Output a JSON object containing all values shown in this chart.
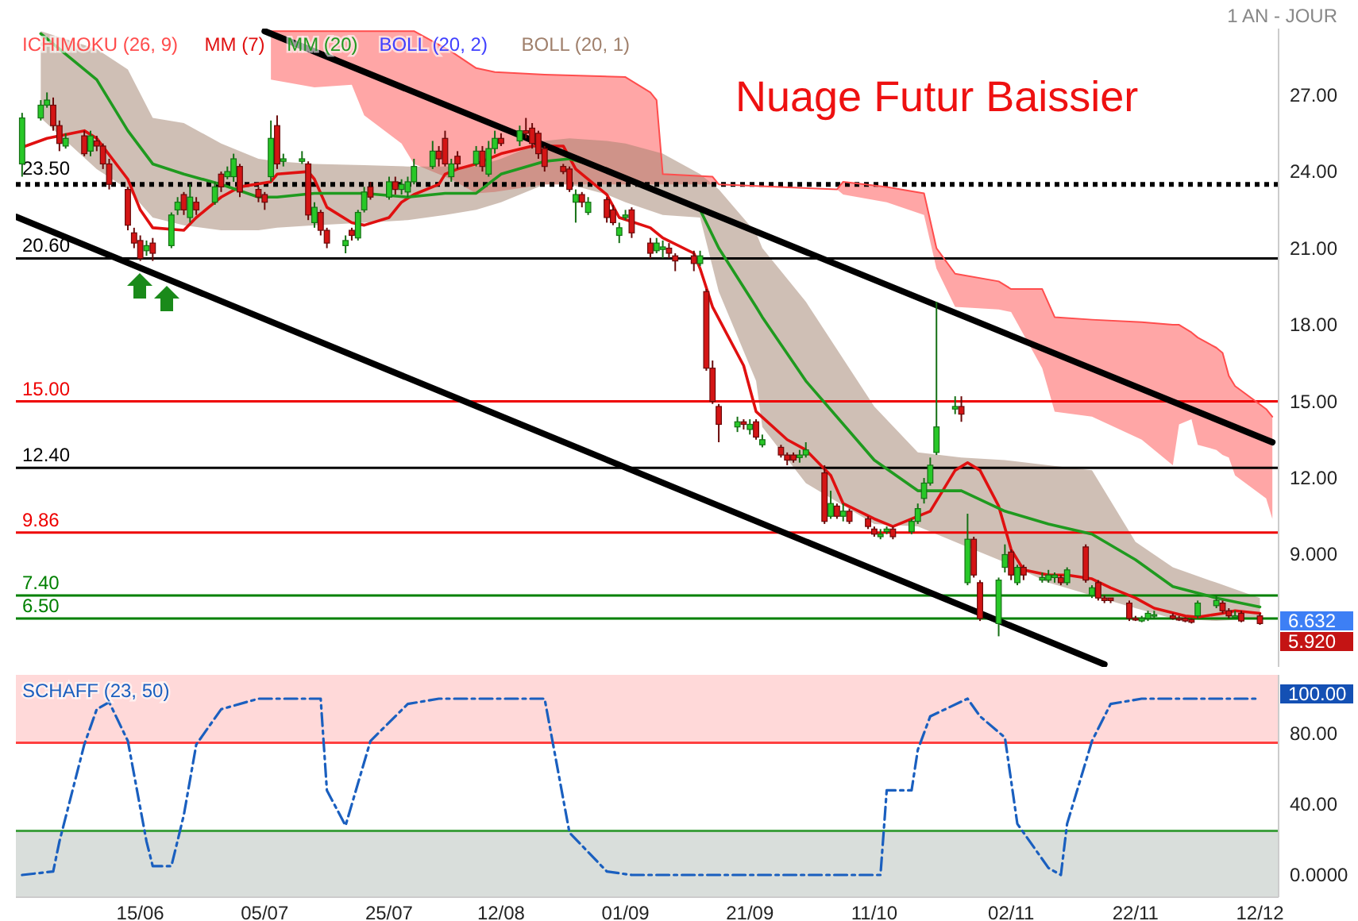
{
  "chart_data": [
    {
      "type": "candlestick",
      "legend": "top left",
      "tick_labels": "y",
      "xlim": [
        "--05-26",
        "--12-15"
      ],
      "ylim": [
        4.6,
        29.6
      ],
      "yticks": [
        {
          "value": 27,
          "label": "27.00"
        },
        {
          "value": 24,
          "label": "24.00"
        },
        {
          "value": 21,
          "label": "21.00"
        },
        {
          "value": 18,
          "label": "18.00"
        },
        {
          "value": 15,
          "label": "15.00"
        },
        {
          "value": 12,
          "label": "12.00"
        },
        {
          "value": 9,
          "label": "9.000"
        }
      ],
      "x": [
        "--05-27",
        "--05-30",
        "--05-31",
        "--06-01",
        "--06-02",
        "--06-03",
        "--06-06",
        "--06-07",
        "--06-08",
        "--06-09",
        "--06-10",
        "--06-13",
        "--06-14",
        "--06-15",
        "--06-16",
        "--06-17",
        "--06-20",
        "--06-21",
        "--06-22",
        "--06-23",
        "--06-24",
        "--06-27",
        "--06-28",
        "--06-29",
        "--06-30",
        "--07-01",
        "--07-04",
        "--07-05",
        "--07-06",
        "--07-07",
        "--07-08",
        "--07-11",
        "--07-12",
        "--07-13",
        "--07-14",
        "--07-15",
        "--07-18",
        "--07-19",
        "--07-20",
        "--07-21",
        "--07-22",
        "--07-25",
        "--07-26",
        "--07-27",
        "--07-28",
        "--07-29",
        "--08-01",
        "--08-02",
        "--08-03",
        "--08-04",
        "--08-05",
        "--08-08",
        "--08-09",
        "--08-10",
        "--08-11",
        "--08-12",
        "--08-15",
        "--08-16",
        "--08-17",
        "--08-18",
        "--08-19",
        "--08-22",
        "--08-23",
        "--08-24",
        "--08-25",
        "--08-26",
        "--08-29",
        "--08-30",
        "--08-31",
        "--09-01",
        "--09-02",
        "--09-05",
        "--09-06",
        "--09-07",
        "--09-08",
        "--09-09",
        "--09-12",
        "--09-13",
        "--09-14",
        "--09-15",
        "--09-16",
        "--09-19",
        "--09-20",
        "--09-21",
        "--09-22",
        "--09-23",
        "--09-26",
        "--09-27",
        "--09-28",
        "--09-29",
        "--09-30",
        "--10-03",
        "--10-04",
        "--10-05",
        "--10-06",
        "--10-07",
        "--10-10",
        "--10-11",
        "--10-12",
        "--10-13",
        "--10-14",
        "--10-17",
        "--10-18",
        "--10-19",
        "--10-20",
        "--10-21",
        "--10-24",
        "--10-25",
        "--10-26",
        "--10-27",
        "--10-28",
        "--10-31",
        "--11-01",
        "--11-02",
        "--11-03",
        "--11-04",
        "--11-07",
        "--11-08",
        "--11-09",
        "--11-10",
        "--11-11",
        "--11-14",
        "--11-15",
        "--11-16",
        "--11-17",
        "--11-18",
        "--11-21",
        "--11-22",
        "--11-23",
        "--11-24",
        "--11-25",
        "--11-28",
        "--11-29",
        "--11-30",
        "--12-01",
        "--12-02",
        "--12-05",
        "--12-06",
        "--12-07",
        "--12-08",
        "--12-09",
        "--12-12"
      ],
      "ohlc": [
        [
          24.3,
          26.3,
          23.8,
          26.1
        ],
        [
          26.1,
          26.8,
          26.0,
          26.6
        ],
        [
          26.6,
          27.1,
          26.5,
          26.8
        ],
        [
          26.6,
          26.9,
          25.6,
          25.8
        ],
        [
          25.8,
          26.0,
          24.8,
          25.1
        ],
        [
          25.0,
          25.5,
          24.9,
          25.3
        ],
        [
          25.4,
          25.6,
          24.6,
          24.7
        ],
        [
          24.8,
          25.6,
          24.6,
          25.4
        ],
        [
          25.2,
          25.4,
          24.8,
          25.0
        ],
        [
          25.0,
          25.1,
          24.1,
          24.3
        ],
        [
          24.3,
          24.5,
          23.3,
          23.5
        ],
        [
          23.3,
          23.4,
          21.7,
          21.9
        ],
        [
          21.6,
          21.8,
          21.0,
          21.2
        ],
        [
          21.3,
          21.5,
          20.5,
          20.6
        ],
        [
          20.9,
          21.3,
          20.7,
          21.1
        ],
        [
          21.2,
          21.4,
          20.5,
          20.8
        ],
        [
          21.1,
          22.4,
          21.0,
          22.3
        ],
        [
          22.5,
          23.0,
          22.3,
          22.8
        ],
        [
          23.1,
          23.2,
          22.3,
          22.5
        ],
        [
          22.2,
          23.5,
          22.0,
          23.0
        ],
        [
          22.8,
          23.0,
          22.3,
          22.5
        ],
        [
          22.8,
          23.6,
          22.7,
          23.4
        ],
        [
          23.9,
          24.0,
          23.2,
          23.4
        ],
        [
          23.8,
          24.2,
          23.7,
          24.0
        ],
        [
          23.8,
          24.7,
          23.6,
          24.5
        ],
        [
          24.2,
          24.3,
          23.0,
          23.2
        ],
        [
          23.3,
          23.4,
          22.8,
          23.0
        ],
        [
          23.1,
          23.2,
          22.5,
          22.8
        ],
        [
          23.8,
          26.0,
          23.6,
          25.3
        ],
        [
          25.8,
          26.2,
          24.1,
          24.3
        ],
        [
          24.4,
          24.7,
          24.2,
          24.5
        ],
        [
          24.4,
          24.8,
          24.3,
          24.5
        ],
        [
          24.3,
          24.4,
          22.1,
          22.3
        ],
        [
          22.0,
          22.8,
          21.8,
          22.6
        ],
        [
          22.4,
          22.5,
          21.5,
          21.7
        ],
        [
          21.7,
          21.8,
          21.0,
          21.2
        ],
        [
          21.1,
          21.5,
          20.8,
          21.3
        ],
        [
          21.7,
          21.8,
          21.3,
          21.5
        ],
        [
          21.4,
          22.5,
          21.3,
          22.4
        ],
        [
          22.5,
          23.4,
          22.4,
          23.2
        ],
        [
          23.4,
          23.6,
          22.9,
          23.0
        ],
        [
          23.0,
          23.8,
          22.9,
          23.6
        ],
        [
          23.6,
          23.8,
          23.1,
          23.3
        ],
        [
          23.3,
          23.7,
          23.1,
          23.5
        ],
        [
          23.2,
          23.8,
          23.0,
          23.6
        ],
        [
          23.6,
          24.5,
          23.5,
          24.2
        ],
        [
          24.2,
          25.2,
          24.1,
          24.8
        ],
        [
          24.8,
          25.0,
          24.2,
          24.5
        ],
        [
          25.3,
          25.6,
          24.2,
          24.3
        ],
        [
          23.8,
          24.5,
          23.6,
          24.3
        ],
        [
          24.6,
          24.8,
          24.1,
          24.3
        ],
        [
          24.3,
          25.0,
          24.2,
          24.8
        ],
        [
          24.8,
          25.0,
          24.0,
          24.2
        ],
        [
          23.9,
          25.2,
          23.8,
          24.9
        ],
        [
          24.9,
          25.6,
          24.7,
          25.3
        ],
        [
          25.3,
          25.5,
          25.0,
          25.1
        ],
        [
          25.2,
          25.8,
          25.0,
          25.6
        ],
        [
          25.6,
          26.1,
          25.3,
          25.5
        ],
        [
          25.7,
          25.9,
          24.9,
          25.1
        ],
        [
          25.5,
          25.6,
          24.5,
          24.7
        ],
        [
          24.9,
          25.0,
          24.0,
          24.2
        ],
        [
          24.2,
          24.3,
          23.9,
          24.0
        ],
        [
          24.1,
          24.2,
          23.2,
          23.3
        ],
        [
          22.8,
          23.3,
          22.0,
          23.1
        ],
        [
          23.1,
          23.2,
          22.6,
          22.8
        ],
        [
          22.4,
          23.0,
          22.3,
          22.8
        ],
        [
          22.9,
          23.0,
          22.0,
          22.2
        ],
        [
          22.5,
          22.7,
          21.9,
          22.0
        ],
        [
          21.5,
          22.0,
          21.2,
          21.8
        ],
        [
          22.2,
          22.5,
          22.1,
          22.3
        ],
        [
          22.5,
          22.6,
          21.4,
          21.6
        ],
        [
          21.2,
          21.4,
          20.6,
          20.8
        ],
        [
          20.9,
          21.4,
          20.8,
          21.2
        ],
        [
          20.95,
          21.3,
          20.6,
          21.05
        ],
        [
          21.0,
          21.2,
          20.6,
          20.8
        ],
        [
          20.7,
          20.8,
          20.1,
          20.5
        ],
        [
          20.7,
          20.9,
          20.1,
          20.4
        ],
        [
          20.4,
          20.9,
          20.3,
          20.7
        ],
        [
          19.3,
          19.4,
          16.2,
          16.3
        ],
        [
          16.3,
          16.6,
          14.9,
          15.0
        ],
        [
          14.8,
          14.9,
          13.4,
          14.1
        ],
        [
          14.0,
          14.4,
          13.8,
          14.2
        ],
        [
          14.2,
          14.3,
          13.9,
          14.1
        ],
        [
          13.9,
          14.3,
          13.7,
          14.1
        ],
        [
          14.2,
          14.3,
          13.5,
          13.6
        ],
        [
          13.3,
          13.7,
          13.2,
          13.5
        ],
        [
          13.2,
          13.3,
          12.8,
          12.9
        ],
        [
          12.9,
          13.0,
          12.5,
          12.7
        ],
        [
          12.9,
          13.0,
          12.6,
          12.7
        ],
        [
          12.8,
          13.1,
          12.6,
          12.9
        ],
        [
          12.9,
          13.4,
          12.8,
          13.1
        ],
        [
          12.2,
          12.5,
          10.2,
          10.3
        ],
        [
          10.5,
          11.5,
          10.4,
          11.0
        ],
        [
          10.9,
          11.0,
          10.4,
          10.5
        ],
        [
          10.5,
          11.0,
          10.3,
          10.7
        ],
        [
          10.7,
          10.8,
          10.2,
          10.3
        ],
        [
          10.4,
          10.5,
          10.0,
          10.1
        ],
        [
          10.0,
          10.1,
          9.7,
          9.8
        ],
        [
          9.7,
          10.0,
          9.6,
          9.8
        ],
        [
          9.9,
          10.1,
          9.8,
          10.0
        ],
        [
          10.0,
          10.1,
          9.6,
          9.7
        ],
        [
          9.9,
          10.4,
          9.8,
          10.3
        ],
        [
          10.3,
          11.0,
          10.2,
          10.8
        ],
        [
          11.2,
          12.0,
          11.0,
          11.8
        ],
        [
          11.8,
          12.8,
          11.7,
          12.5
        ],
        [
          13.0,
          18.9,
          12.9,
          14.0
        ],
        [
          14.7,
          15.2,
          14.5,
          14.8
        ],
        [
          14.8,
          15.2,
          14.2,
          14.5
        ],
        [
          7.9,
          10.6,
          7.8,
          9.6
        ],
        [
          9.6,
          9.7,
          8.1,
          8.2
        ],
        [
          7.9,
          8.0,
          6.4,
          6.5
        ],
        [
          6.3,
          8.1,
          5.8,
          8.0
        ],
        [
          8.5,
          9.4,
          8.3,
          9.0
        ],
        [
          9.1,
          9.2,
          8.0,
          8.2
        ],
        [
          7.9,
          8.6,
          7.8,
          8.5
        ],
        [
          8.5,
          8.6,
          8.0,
          8.2
        ],
        [
          8.0,
          8.3,
          7.9,
          8.1
        ],
        [
          8.0,
          8.4,
          7.9,
          8.2
        ],
        [
          8.1,
          8.3,
          7.9,
          8.2
        ],
        [
          8.1,
          8.2,
          7.8,
          7.9
        ],
        [
          7.9,
          8.5,
          7.8,
          8.4
        ],
        [
          9.3,
          9.4,
          7.9,
          8.0
        ],
        [
          7.4,
          7.8,
          7.3,
          7.7
        ],
        [
          7.9,
          8.0,
          7.2,
          7.3
        ],
        [
          7.3,
          7.4,
          7.1,
          7.2
        ],
        [
          7.3,
          7.3,
          7.1,
          7.2
        ],
        [
          7.1,
          7.2,
          6.4,
          6.5
        ],
        [
          6.5,
          6.6,
          6.4,
          6.45
        ],
        [
          6.4,
          6.6,
          6.35,
          6.5
        ],
        [
          6.5,
          6.8,
          6.4,
          6.7
        ],
        [
          6.6,
          6.8,
          6.5,
          6.65
        ],
        [
          6.6,
          6.7,
          6.45,
          6.5
        ],
        [
          6.5,
          6.6,
          6.4,
          6.45
        ],
        [
          6.5,
          6.55,
          6.35,
          6.4
        ],
        [
          6.45,
          6.5,
          6.3,
          6.35
        ],
        [
          6.6,
          7.2,
          6.5,
          7.1
        ],
        [
          7.0,
          7.4,
          6.9,
          7.2
        ],
        [
          7.1,
          7.2,
          6.7,
          6.8
        ],
        [
          6.8,
          6.9,
          6.5,
          6.6
        ],
        [
          6.55,
          6.8,
          6.5,
          6.6
        ],
        [
          6.7,
          6.8,
          6.35,
          6.4
        ],
        [
          6.6,
          6.7,
          6.25,
          6.3
        ]
      ],
      "series": [
        {
          "name": "ICHIMOKU (26, 9)",
          "type": "line",
          "color": "#ff4d4d",
          "x": [
            "--07-06",
            "--07-13",
            "--07-19",
            "--07-21",
            "--07-27",
            "--07-29",
            "--08-04",
            "--08-08",
            "--08-11",
            "--08-19",
            "--09-01",
            "--09-05",
            "--09-06",
            "--09-07",
            "--09-15",
            "--09-16",
            "--10-05",
            "--10-06",
            "--10-13",
            "--10-19",
            "--10-21",
            "--10-24",
            "--10-31",
            "--11-02",
            "--11-07",
            "--11-09",
            "--11-15",
            "--11-23",
            "--11-28",
            "--11-29",
            "--12-01",
            "--12-02",
            "--12-05",
            "--12-06",
            "--12-07",
            "--12-08",
            "--12-13",
            "--12-14"
          ],
          "values": [
            29.5,
            29.5,
            29.5,
            29.5,
            29.5,
            29.5,
            28.7,
            28.05,
            27.9,
            27.8,
            27.7,
            27.1,
            26.8,
            23.9,
            23.8,
            23.5,
            23.3,
            23.6,
            23.4,
            23.15,
            21.0,
            20.0,
            19.7,
            19.4,
            19.4,
            18.3,
            18.2,
            18.1,
            18.0,
            18.0,
            17.7,
            17.5,
            17.1,
            16.9,
            16.0,
            15.6,
            14.7,
            14.4
          ],
          "upper": [
            29.5,
            29.5,
            29.5,
            29.5,
            29.5,
            29.5,
            28.7,
            28.05,
            27.9,
            27.8,
            27.7,
            27.1,
            26.8,
            23.9,
            23.8,
            23.5,
            23.3,
            23.6,
            23.4,
            23.15,
            21.0,
            20.0,
            19.7,
            19.4,
            19.4,
            18.3,
            18.2,
            18.1,
            18.0,
            18.0,
            17.7,
            17.5,
            17.1,
            16.9,
            16.0,
            15.6,
            14.7,
            14.4
          ],
          "lower": [
            27.6,
            27.3,
            27.4,
            26.2,
            25.1,
            24.3,
            23.7,
            23.15,
            23.2,
            23.5,
            23.5,
            23.5,
            23.5,
            23.5,
            23.5,
            23.5,
            23.3,
            23.1,
            22.8,
            22.3,
            20.2,
            18.7,
            18.6,
            18.5,
            16.3,
            14.6,
            14.4,
            13.5,
            12.5,
            14.1,
            14.3,
            13.3,
            13.1,
            12.9,
            12.8,
            12.1,
            11.2,
            10.4
          ]
        },
        {
          "name": "MM (7)",
          "type": "line",
          "color": "#e01010",
          "x": [
            "--05-27",
            "--05-31",
            "--06-06",
            "--06-08",
            "--06-13",
            "--06-15",
            "--06-17",
            "--06-22",
            "--06-24",
            "--06-28",
            "--07-01",
            "--07-06",
            "--07-07",
            "--07-12",
            "--07-13",
            "--07-15",
            "--07-19",
            "--07-21",
            "--07-25",
            "--07-27",
            "--07-29",
            "--08-02",
            "--08-03",
            "--08-05",
            "--08-08",
            "--08-12",
            "--08-17",
            "--08-22",
            "--08-24",
            "--08-29",
            "--08-31",
            "--09-05",
            "--09-07",
            "--09-12",
            "--09-13",
            "--09-15",
            "--09-20",
            "--09-22",
            "--09-27",
            "--09-30",
            "--10-04",
            "--10-06",
            "--10-11",
            "--10-14",
            "--10-20",
            "--10-24",
            "--10-26",
            "--10-28",
            "--10-31",
            "--11-02",
            "--11-04",
            "--11-08",
            "--11-11",
            "--11-15",
            "--11-18",
            "--11-22",
            "--11-25",
            "--11-30",
            "--12-02",
            "--12-06",
            "--12-08",
            "--12-12"
          ],
          "values": [
            24.95,
            25.3,
            25.6,
            25.3,
            23.7,
            22.5,
            21.8,
            21.7,
            22.2,
            23.0,
            23.4,
            23.6,
            23.9,
            24.0,
            23.7,
            22.6,
            22.0,
            21.9,
            22.2,
            22.8,
            23.1,
            23.5,
            23.9,
            24.1,
            24.3,
            24.7,
            25.0,
            25.0,
            24.1,
            23.1,
            22.2,
            21.8,
            21.4,
            20.8,
            20.2,
            18.7,
            16.4,
            14.6,
            13.5,
            13.1,
            12.1,
            11.0,
            10.4,
            10.1,
            10.7,
            12.3,
            12.6,
            12.3,
            10.9,
            9.2,
            8.4,
            8.2,
            8.2,
            8.05,
            7.7,
            7.3,
            6.9,
            6.6,
            6.55,
            6.7,
            6.8,
            6.7
          ]
        },
        {
          "name": "MM (20)",
          "type": "line",
          "color": "#1f9a1f",
          "x": [
            "--05-30",
            "--06-08",
            "--06-13",
            "--06-17",
            "--06-22",
            "--06-28",
            "--07-04",
            "--07-07",
            "--07-13",
            "--07-21",
            "--07-28",
            "--08-03",
            "--08-08",
            "--08-12",
            "--08-19",
            "--08-23",
            "--08-29",
            "--09-01",
            "--09-07",
            "--09-13",
            "--09-16",
            "--09-22",
            "--09-23",
            "--09-30",
            "--10-11",
            "--10-18",
            "--10-25",
            "--11-01",
            "--11-08",
            "--11-15",
            "--11-22",
            "--11-28",
            "--12-05",
            "--12-12"
          ],
          "values": [
            29.4,
            27.6,
            25.6,
            24.3,
            23.9,
            23.5,
            23.0,
            23.0,
            23.15,
            23.15,
            23.0,
            23.15,
            23.15,
            23.9,
            24.4,
            24.5,
            24.1,
            23.7,
            23.1,
            22.5,
            21.0,
            18.7,
            18.3,
            15.8,
            12.7,
            11.5,
            11.5,
            10.7,
            10.2,
            9.8,
            8.8,
            7.75,
            7.3,
            6.95
          ],
          "lower": [
            26.1,
            24.1,
            23.3,
            22.2,
            21.9,
            21.7,
            21.7,
            21.8,
            21.9,
            22.0,
            22.1,
            22.3,
            22.5,
            22.8,
            23.5,
            23.5,
            23.1,
            22.8,
            22.3,
            22.2,
            19.3,
            15.8,
            14.0,
            11.8,
            10.2,
            10.1,
            9.4,
            8.7,
            7.9,
            7.4,
            6.9,
            6.5,
            6.4,
            6.5
          ],
          "upper": [
            29.5,
            28.8,
            28.0,
            26.1,
            25.9,
            25.1,
            24.5,
            24.4,
            24.3,
            24.25,
            24.2,
            24.2,
            24.2,
            24.5,
            25.2,
            25.3,
            25.2,
            25.1,
            24.7,
            23.9,
            23.3,
            21.6,
            21.0,
            18.9,
            14.8,
            13.0,
            12.8,
            12.7,
            12.5,
            12.3,
            9.5,
            8.5,
            7.9,
            7.3
          ]
        },
        {
          "type": "line",
          "color": "#000000",
          "x": [
            "--07-05",
            "--12-14"
          ],
          "values": [
            29.5,
            13.4
          ]
        },
        {
          "type": "line",
          "color": "#000000",
          "x": [
            "--05-26",
            "--11-17"
          ],
          "values": [
            22.23,
            4.7
          ]
        }
      ],
      "ref_lines": [
        {
          "axis": "y",
          "value": 23.5,
          "label": "23.50",
          "color": "#000000",
          "line_style": "dotted"
        },
        {
          "axis": "y",
          "value": 20.6,
          "label": "20.60",
          "color": "#000000"
        },
        {
          "axis": "y",
          "value": 15,
          "label": "15.00",
          "color": "#ee0000"
        },
        {
          "axis": "y",
          "value": 12.4,
          "label": "12.40",
          "color": "#000000"
        },
        {
          "axis": "y",
          "value": 9.86,
          "label": "9.86",
          "color": "#ee0000"
        },
        {
          "axis": "y",
          "value": 7.4,
          "label": "7.40",
          "color": "#008000"
        },
        {
          "axis": "y",
          "value": 6.5,
          "label": "6.50",
          "color": "#008000"
        }
      ],
      "annotations": [
        "Nuage Futur Baissier",
        "1 AN - JOUR",
        "BOLL (20, 2)",
        "BOLL (20, 1)",
        "6.632",
        "5.920"
      ]
    },
    {
      "type": "line",
      "legend": "top left",
      "line_style": "dashed",
      "xlim": [
        "--05-26",
        "--12-15"
      ],
      "ylim": [
        -12.6,
        113.5
      ],
      "xticks": [
        {
          "value": "--06-15",
          "label": "15/06"
        },
        {
          "value": "--07-05",
          "label": "05/07"
        },
        {
          "value": "--07-25",
          "label": "25/07"
        },
        {
          "value": "--08-12",
          "label": "12/08"
        },
        {
          "value": "--09-01",
          "label": "01/09"
        },
        {
          "value": "--09-21",
          "label": "21/09"
        },
        {
          "value": "--10-11",
          "label": "11/10"
        },
        {
          "value": "--11-02",
          "label": "02/11"
        },
        {
          "value": "--11-22",
          "label": "22/11"
        },
        {
          "value": "--12-12",
          "label": "12/12"
        }
      ],
      "yticks": [
        {
          "value": 0,
          "label": "0.0000"
        },
        {
          "value": 40,
          "label": "40.00"
        },
        {
          "value": 80,
          "label": "80.00"
        }
      ],
      "series": [
        {
          "name": "SCHAFF (23, 50)",
          "color": "#1a5fbf",
          "x": [
            "--05-27",
            "--06-01",
            "--06-02",
            "--06-06",
            "--06-08",
            "--06-10",
            "--06-13",
            "--06-16",
            "--06-17",
            "--06-20",
            "--06-22",
            "--06-24",
            "--06-28",
            "--07-04",
            "--07-14",
            "--07-15",
            "--07-18",
            "--07-22",
            "--07-28",
            "--08-02",
            "--08-19",
            "--08-23",
            "--08-29",
            "--09-02",
            "--10-12",
            "--10-13",
            "--10-17",
            "--10-18",
            "--10-20",
            "--10-26",
            "--10-28",
            "--11-01",
            "--11-03",
            "--11-08",
            "--11-10",
            "--11-11",
            "--11-15",
            "--11-18",
            "--11-23",
            "--12-12"
          ],
          "values": [
            0,
            2,
            19,
            74,
            94,
            98,
            76,
            19,
            5,
            5,
            34,
            74,
            94,
            100,
            100,
            48,
            28,
            76,
            97,
            100,
            100,
            24,
            2,
            0,
            0,
            48,
            48,
            71,
            90,
            100,
            90,
            78,
            29,
            4,
            0,
            29,
            76,
            97,
            100,
            100
          ]
        }
      ],
      "bands": [
        {
          "axis": "y",
          "from": 75,
          "to": 113.5,
          "color": "#ffd9d9"
        },
        {
          "axis": "y",
          "from": -12.6,
          "to": 25,
          "color": "#d9dedb"
        }
      ],
      "ref_lines": [
        {
          "axis": "y",
          "value": 75,
          "color": "#ff4040"
        },
        {
          "axis": "y",
          "value": 25,
          "color": "#40a040"
        }
      ],
      "annotations": [
        "100.00"
      ]
    }
  ]
}
